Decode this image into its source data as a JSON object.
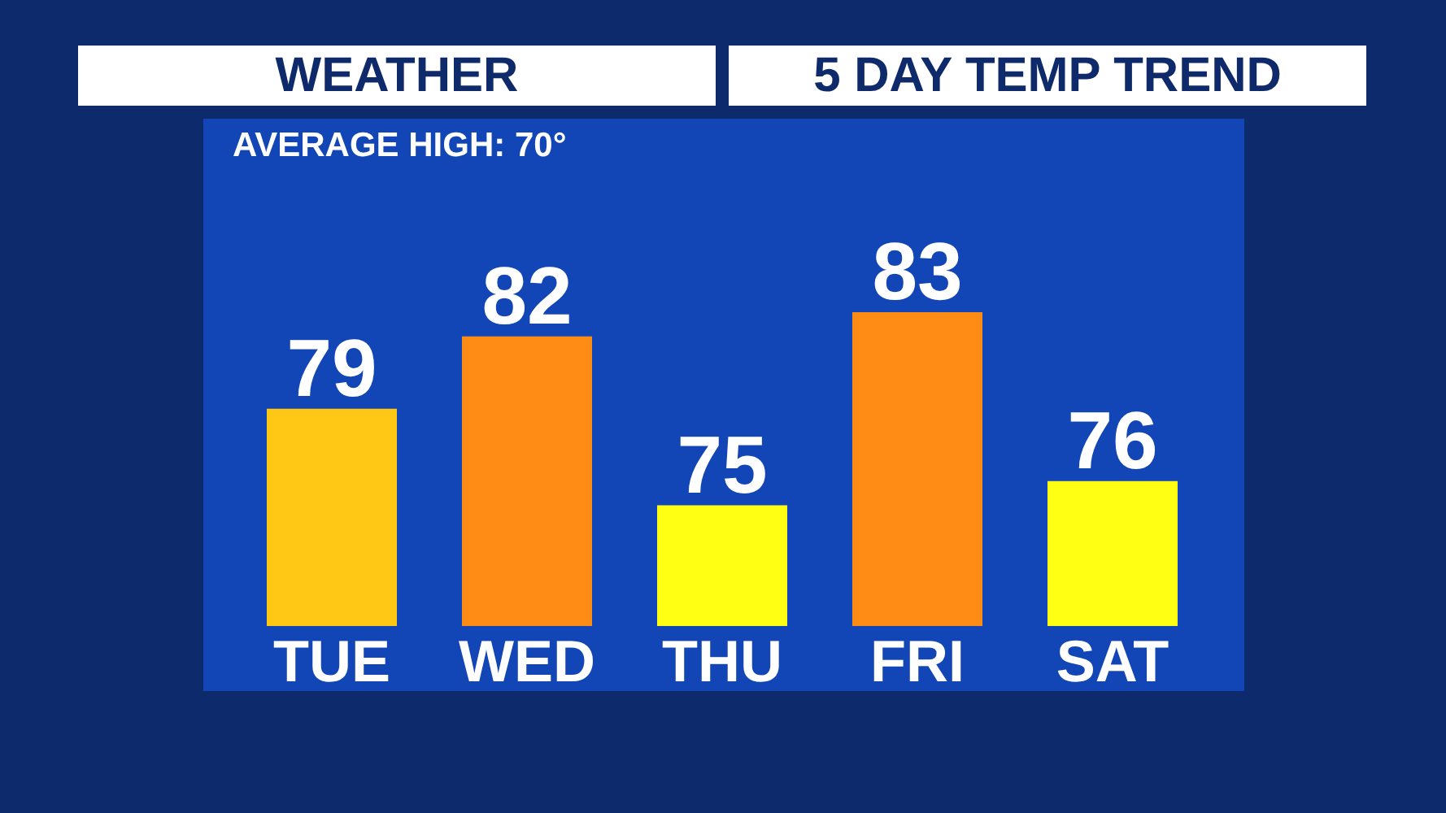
{
  "chart_data": {
    "type": "bar",
    "title": "WEATHER",
    "subtitle": "5 DAY TEMP TREND",
    "annotations": [
      "AVERAGE HIGH: 70°"
    ],
    "categories": [
      "TUE",
      "WED",
      "THU",
      "FRI",
      "SAT"
    ],
    "values": [
      79,
      82,
      75,
      83,
      76
    ],
    "colors": [
      "#ffc814",
      "#ff8c14",
      "#ffff14",
      "#ff8c14",
      "#ffff14"
    ],
    "ylim": [
      70,
      83
    ],
    "data_labels": true,
    "tick_labels": "x"
  }
}
